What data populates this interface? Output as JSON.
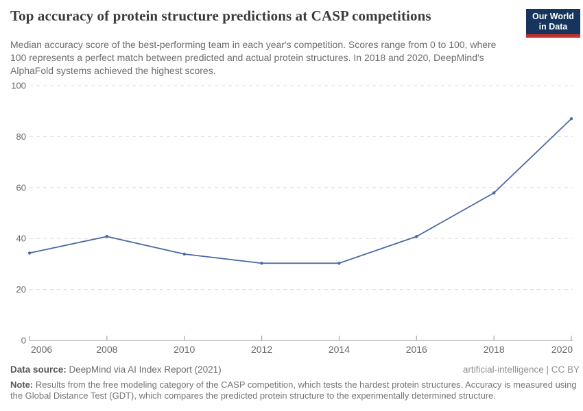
{
  "header": {
    "title": "Top accuracy of protein structure predictions at CASP competitions",
    "subtitle": "Median accuracy score of the best-performing team in each year's competition. Scores range from 0 to 100, where 100 represents a perfect match between predicted and actual protein structures. In 2018 and 2020, DeepMind's AlphaFold systems achieved the highest scores.",
    "logo": {
      "line1": "Our World",
      "line2": "in Data",
      "bg_color": "#16345c",
      "bar_color": "#c0332b"
    }
  },
  "chart_data": {
    "type": "line",
    "title": "Top accuracy of protein structure predictions at CASP competitions",
    "x": [
      2006,
      2008,
      2010,
      2012,
      2014,
      2016,
      2018,
      2020
    ],
    "values": [
      34.3,
      40.8,
      33.9,
      30.3,
      30.3,
      40.8,
      57.9,
      87
    ],
    "xlabel": "",
    "ylabel": "",
    "ylim": [
      0,
      100
    ],
    "yticks": [
      0,
      20,
      40,
      60,
      80,
      100
    ],
    "xticks": [
      2006,
      2008,
      2010,
      2012,
      2014,
      2016,
      2018,
      2020
    ],
    "grid": "horizontal-dashed",
    "legend": "none",
    "line_color": "#4a68a4",
    "axis_color": "#999999",
    "grid_color": "#dcdcdc",
    "tick_label_color": "#666666"
  },
  "footer": {
    "data_source_label": "Data source:",
    "data_source_value": "DeepMind via AI Index Report (2021)",
    "attribution": "artificial-intelligence | CC BY",
    "note_label": "Note:",
    "note_text": "Results from the free modeling category of the CASP competition, which tests the hardest protein structures. Accuracy is measured using the Global Distance Test (GDT), which compares the predicted protein structure to the experimentally determined structure."
  }
}
